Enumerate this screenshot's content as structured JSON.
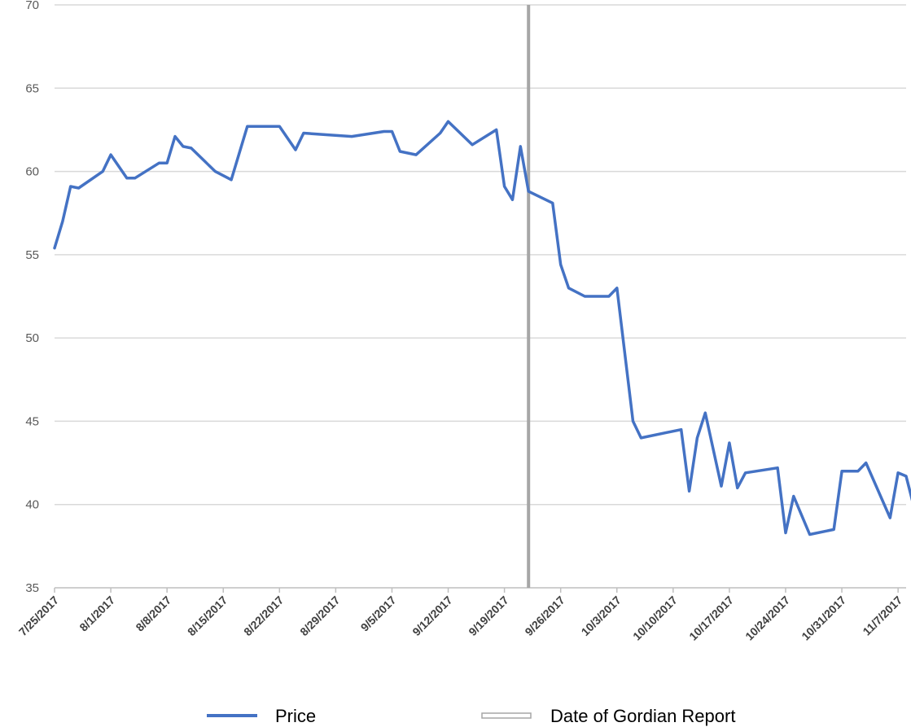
{
  "chart_data": {
    "type": "line",
    "title": "",
    "xlabel": "",
    "ylabel": "",
    "ylim": [
      35,
      70
    ],
    "xlim": [
      "2017-07-25",
      "2017-11-08"
    ],
    "y_ticks": [
      "35",
      "40",
      "45",
      "50",
      "55",
      "60",
      "65",
      "70"
    ],
    "x_ticks": [
      {
        "date": "2017-07-25",
        "label": "7/25/2017"
      },
      {
        "date": "2017-08-01",
        "label": "8/1/2017"
      },
      {
        "date": "2017-08-08",
        "label": "8/8/2017"
      },
      {
        "date": "2017-08-15",
        "label": "8/15/2017"
      },
      {
        "date": "2017-08-22",
        "label": "8/22/2017"
      },
      {
        "date": "2017-08-29",
        "label": "8/29/2017"
      },
      {
        "date": "2017-09-05",
        "label": "9/5/2017"
      },
      {
        "date": "2017-09-12",
        "label": "9/12/2017"
      },
      {
        "date": "2017-09-19",
        "label": "9/19/2017"
      },
      {
        "date": "2017-09-26",
        "label": "9/26/2017"
      },
      {
        "date": "2017-10-03",
        "label": "10/3/2017"
      },
      {
        "date": "2017-10-10",
        "label": "10/10/2017"
      },
      {
        "date": "2017-10-17",
        "label": "10/17/2017"
      },
      {
        "date": "2017-10-24",
        "label": "10/24/2017"
      },
      {
        "date": "2017-10-31",
        "label": "10/31/2017"
      },
      {
        "date": "2017-11-07",
        "label": "11/7/2017"
      }
    ],
    "grid": true,
    "legend": "bottom",
    "series": [
      {
        "name": "Price",
        "color": "#4472c4",
        "points": [
          [
            "2017-07-25",
            55.4
          ],
          [
            "2017-07-26",
            57.0
          ],
          [
            "2017-07-27",
            59.1
          ],
          [
            "2017-07-28",
            59.0
          ],
          [
            "2017-07-31",
            60.0
          ],
          [
            "2017-08-01",
            61.0
          ],
          [
            "2017-08-03",
            59.6
          ],
          [
            "2017-08-04",
            59.6
          ],
          [
            "2017-08-07",
            60.5
          ],
          [
            "2017-08-08",
            60.5
          ],
          [
            "2017-08-09",
            62.1
          ],
          [
            "2017-08-10",
            61.5
          ],
          [
            "2017-08-11",
            61.4
          ],
          [
            "2017-08-14",
            60.0
          ],
          [
            "2017-08-16",
            59.5
          ],
          [
            "2017-08-18",
            62.7
          ],
          [
            "2017-08-21",
            62.7
          ],
          [
            "2017-08-22",
            62.7
          ],
          [
            "2017-08-24",
            61.3
          ],
          [
            "2017-08-25",
            62.3
          ],
          [
            "2017-08-28",
            62.2
          ],
          [
            "2017-08-31",
            62.1
          ],
          [
            "2017-09-04",
            62.4
          ],
          [
            "2017-09-05",
            62.4
          ],
          [
            "2017-09-06",
            61.2
          ],
          [
            "2017-09-08",
            61.0
          ],
          [
            "2017-09-11",
            62.3
          ],
          [
            "2017-09-12",
            63.0
          ],
          [
            "2017-09-15",
            61.6
          ],
          [
            "2017-09-18",
            62.5
          ],
          [
            "2017-09-19",
            59.1
          ],
          [
            "2017-09-20",
            58.3
          ],
          [
            "2017-09-21",
            61.5
          ],
          [
            "2017-09-22",
            58.8
          ],
          [
            "2017-09-25",
            58.1
          ],
          [
            "2017-09-26",
            54.4
          ],
          [
            "2017-09-27",
            53.0
          ],
          [
            "2017-09-29",
            52.5
          ],
          [
            "2017-10-02",
            52.5
          ],
          [
            "2017-10-03",
            53.0
          ],
          [
            "2017-10-05",
            45.0
          ],
          [
            "2017-10-06",
            44.0
          ],
          [
            "2017-10-09",
            44.3
          ],
          [
            "2017-10-11",
            44.5
          ],
          [
            "2017-10-12",
            40.8
          ],
          [
            "2017-10-13",
            44.0
          ],
          [
            "2017-10-14",
            45.5
          ],
          [
            "2017-10-16",
            41.1
          ],
          [
            "2017-10-17",
            43.7
          ],
          [
            "2017-10-18",
            41.0
          ],
          [
            "2017-10-19",
            41.9
          ],
          [
            "2017-10-23",
            42.2
          ],
          [
            "2017-10-24",
            38.3
          ],
          [
            "2017-10-25",
            40.5
          ],
          [
            "2017-10-27",
            38.2
          ],
          [
            "2017-10-30",
            38.5
          ],
          [
            "2017-10-31",
            42.0
          ],
          [
            "2017-11-02",
            42.0
          ],
          [
            "2017-11-03",
            42.5
          ],
          [
            "2017-11-06",
            39.2
          ],
          [
            "2017-11-07",
            41.9
          ],
          [
            "2017-11-08",
            41.7
          ],
          [
            "2017-11-09",
            39.8
          ]
        ]
      }
    ],
    "annotations": [
      {
        "name": "Date of Gordian Report",
        "type": "vertical-line",
        "date": "2017-09-22",
        "color": "#a6a6a6"
      }
    ],
    "legend_entries": [
      {
        "label": "Price",
        "color": "#4472c4"
      },
      {
        "label": "Date of Gordian Report",
        "color": "#a6a6a6"
      }
    ]
  }
}
